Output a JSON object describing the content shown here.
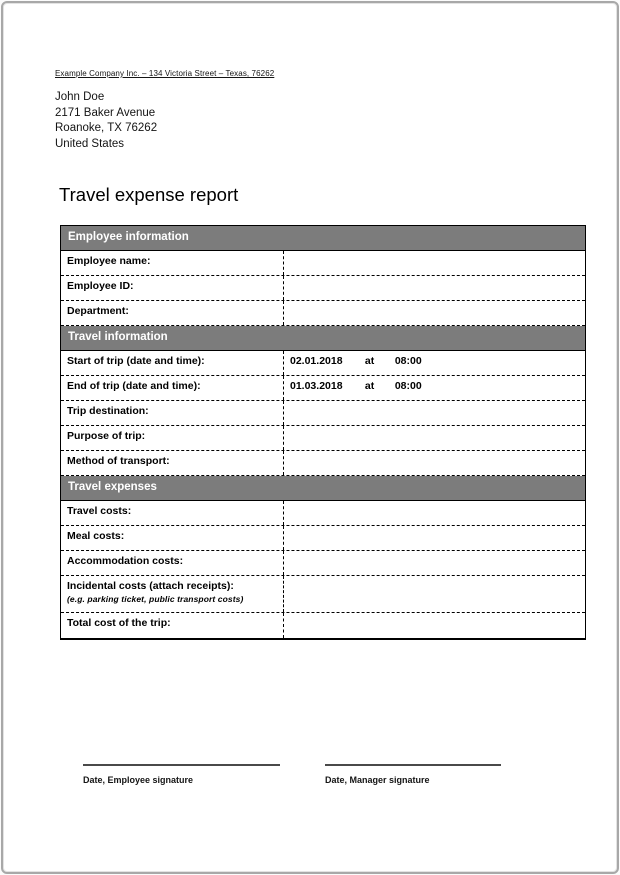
{
  "page": {
    "letterhead": "Example Company Inc. – 134 Victoria Street – Texas, 76262",
    "recipient": {
      "name": "John Doe",
      "street": "2171 Baker Avenue",
      "city": "Roanoke, TX 76262",
      "country": "United States"
    },
    "title": "Travel expense report"
  },
  "form": {
    "sections": [
      {
        "header": "Employee information",
        "rows": [
          {
            "label": "Employee name:"
          },
          {
            "label": "Employee ID:"
          },
          {
            "label": "Department:"
          }
        ]
      },
      {
        "header": "Travel information",
        "rows": [
          {
            "label": "Start of trip (date and time):",
            "date": "02.01.2018",
            "at": "at",
            "time": "08:00"
          },
          {
            "label": "End of trip (date and time):",
            "date": "01.03.2018",
            "at": "at",
            "time": "08:00"
          },
          {
            "label": "Trip destination:"
          },
          {
            "label": "Purpose of trip:"
          },
          {
            "label": "Method of transport:"
          }
        ]
      },
      {
        "header": "Travel expenses",
        "rows": [
          {
            "label": "Travel costs:"
          },
          {
            "label": "Meal costs:"
          },
          {
            "label": "Accommodation costs:"
          },
          {
            "label": "Incidental costs (attach receipts):",
            "note": "(e.g. parking ticket, public transport costs)"
          },
          {
            "label": "Total cost of the trip:"
          }
        ]
      }
    ]
  },
  "signatures": {
    "employee": "Date, Employee signature",
    "manager": "Date, Manager signature"
  },
  "colors": {
    "section_header_bg": "#7c7c7c",
    "section_header_text": "#ffffff",
    "table_border": "#000000",
    "page_border": "#a8a8a8"
  }
}
